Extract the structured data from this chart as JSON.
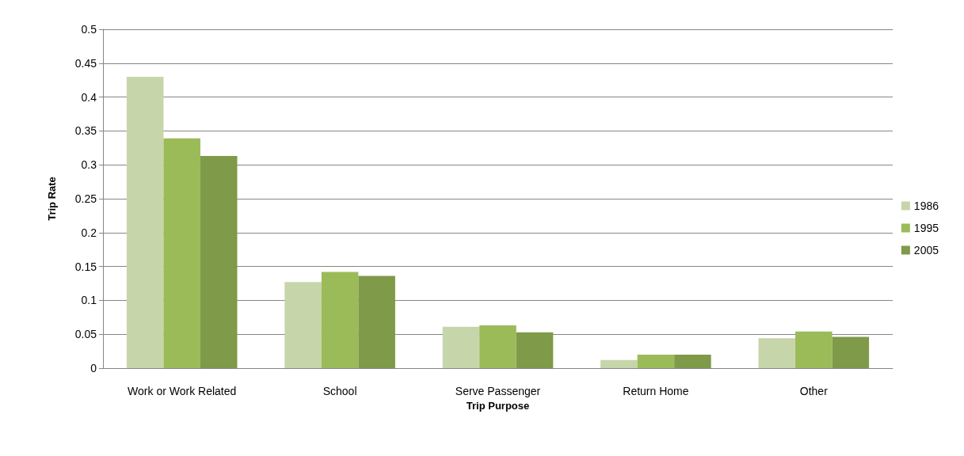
{
  "chart_data": {
    "type": "bar",
    "xlabel": "Trip Purpose",
    "ylabel": "Trip Rate",
    "categories": [
      "Work or Work Related",
      "School",
      "Serve Passenger",
      "Return Home",
      "Other"
    ],
    "series": [
      {
        "name": "1986",
        "color": "#c6d6aa",
        "values": [
          0.43,
          0.127,
          0.061,
          0.012,
          0.044
        ]
      },
      {
        "name": "1995",
        "color": "#9bbb59",
        "values": [
          0.339,
          0.142,
          0.063,
          0.02,
          0.054
        ]
      },
      {
        "name": "2005",
        "color": "#7f9a48",
        "values": [
          0.313,
          0.136,
          0.053,
          0.02,
          0.046
        ]
      }
    ],
    "ylim": [
      0,
      0.5
    ],
    "yticks": [
      0,
      0.05,
      0.1,
      0.15,
      0.2,
      0.25,
      0.3,
      0.35,
      0.4,
      0.45,
      0.5
    ],
    "grid": "y",
    "legend": "right"
  }
}
